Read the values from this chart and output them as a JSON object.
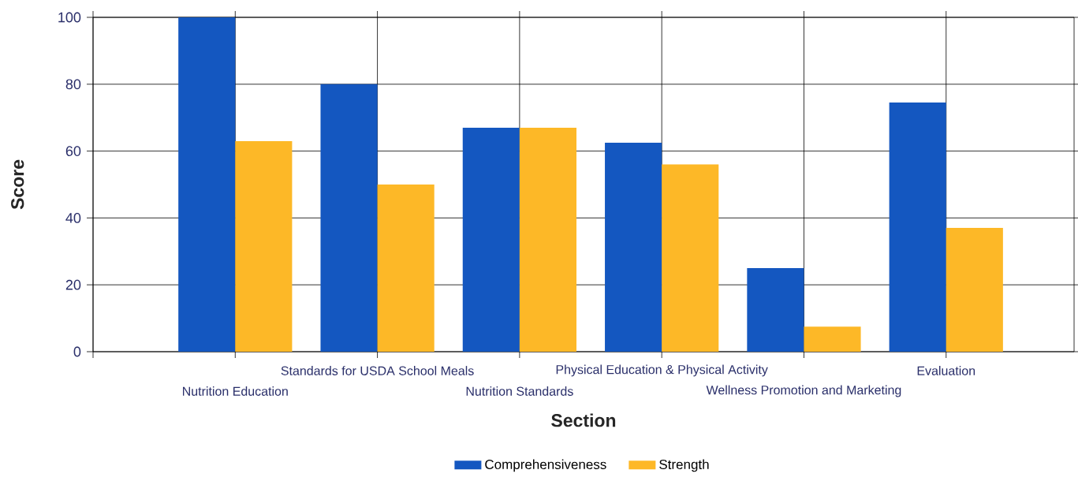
{
  "chart_data": {
    "type": "bar",
    "xlabel": "Section",
    "ylabel": "Score",
    "categories": [
      "Nutrition Education",
      "Standards for USDA School Meals",
      "Nutrition Standards",
      "Physical Education & Physical Activity",
      "Wellness Promotion and Marketing",
      "Evaluation"
    ],
    "series": [
      {
        "name": "Comprehensiveness",
        "color": "#1457c0",
        "values": [
          100,
          80,
          67,
          62.5,
          25,
          74.5
        ]
      },
      {
        "name": "Strength",
        "color": "#fdb827",
        "values": [
          63,
          50,
          67,
          56,
          7.5,
          37
        ]
      }
    ],
    "ylim": [
      0,
      100
    ],
    "yticks": [
      0,
      20,
      40,
      60,
      80,
      100
    ],
    "grid": true,
    "legend": "bottom"
  }
}
